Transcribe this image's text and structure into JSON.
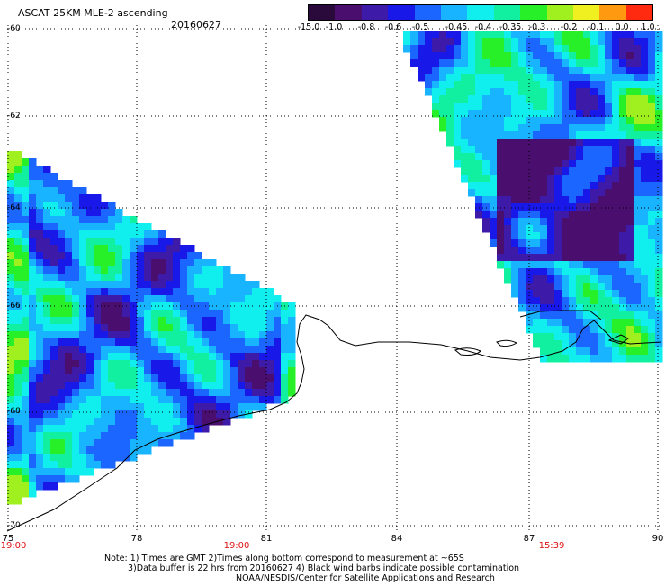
{
  "header": {
    "title": "ASCAT 25KM MLE-2 ascending",
    "date": "20160627"
  },
  "colorbar": {
    "labels": [
      "-15.0",
      "-1.0",
      "-0.8",
      "-0.6",
      "-0.5",
      "-0.45",
      "-0.4",
      "-0.35",
      "-0.3",
      "-0.2",
      "-0.1",
      "0.0",
      "1.0"
    ],
    "colors": [
      "#2a0a3a",
      "#4a0e6e",
      "#3e1aa8",
      "#1818e8",
      "#1a66ff",
      "#18b4ff",
      "#10eeee",
      "#10f0a0",
      "#28f028",
      "#a0f020",
      "#f0f020",
      "#ff9a10",
      "#ff2a10"
    ]
  },
  "map": {
    "lat_labels": [
      "-60",
      "-62",
      "-64",
      "-66",
      "-68",
      "-70"
    ],
    "lon_labels": [
      "75",
      "78",
      "81",
      "84",
      "87",
      "90"
    ],
    "time_labels": [
      "19:00",
      "19:00",
      "15:39"
    ]
  },
  "notes": {
    "line1": "Note: 1) Times are GMT 2)Times along bottom correspond to measurement at ~65S",
    "line2": "3)Data buffer is 22 hrs from 20160627 4) Black wind barbs indicate possible contamination",
    "line3": "NOAA/NESDIS/Center for Satellite Applications and Research"
  }
}
